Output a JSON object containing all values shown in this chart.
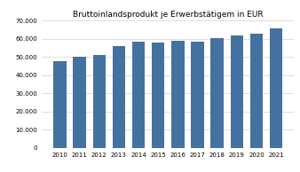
{
  "title": "Bruttoinlandsprodukt je Erwerbstätigem in EUR",
  "years": [
    2010,
    2011,
    2012,
    2013,
    2014,
    2015,
    2016,
    2017,
    2018,
    2019,
    2020,
    2021
  ],
  "values": [
    47800,
    50300,
    51200,
    55800,
    58200,
    57900,
    58700,
    58200,
    60200,
    62000,
    63000,
    65800
  ],
  "bar_color": "#4472a0",
  "ylim": [
    0,
    70000
  ],
  "yticks": [
    0,
    10000,
    20000,
    30000,
    40000,
    50000,
    60000,
    70000
  ],
  "title_fontsize": 6.5,
  "tick_fontsize": 5.0,
  "background_color": "#ffffff",
  "grid_color": "#d0d0d0"
}
